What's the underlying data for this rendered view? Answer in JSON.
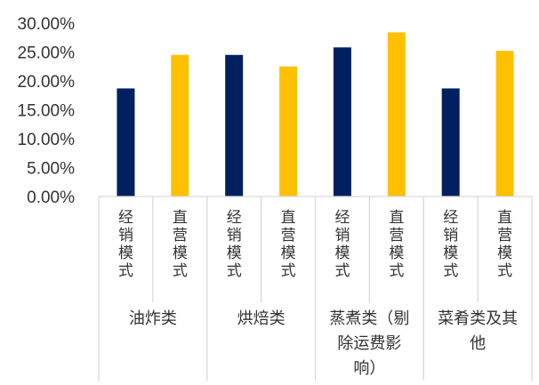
{
  "chart_data": {
    "type": "bar",
    "title": "",
    "xlabel": "",
    "ylabel": "",
    "ylim": [
      0,
      0.3
    ],
    "yticks": [
      "0.00%",
      "5.00%",
      "10.00%",
      "15.00%",
      "20.00%",
      "25.00%",
      "30.00%"
    ],
    "grid": false,
    "legend": "none",
    "colors": {
      "经销模式": "#002060",
      "直营模式": "#FFC000"
    },
    "groups": [
      {
        "label_lines": [
          "油炸类"
        ],
        "bars": [
          {
            "label": "经销模式",
            "value": 0.187
          },
          {
            "label": "直营模式",
            "value": 0.245
          }
        ]
      },
      {
        "label_lines": [
          "烘焙类"
        ],
        "bars": [
          {
            "label": "经销模式",
            "value": 0.245
          },
          {
            "label": "直营模式",
            "value": 0.225
          }
        ]
      },
      {
        "label_lines": [
          "蒸煮类（剔",
          "除运费影",
          "响）"
        ],
        "bars": [
          {
            "label": "经销模式",
            "value": 0.258
          },
          {
            "label": "直营模式",
            "value": 0.284
          }
        ]
      },
      {
        "label_lines": [
          "菜肴类及其",
          "他"
        ],
        "bars": [
          {
            "label": "经销模式",
            "value": 0.187
          },
          {
            "label": "直营模式",
            "value": 0.252
          }
        ]
      }
    ]
  }
}
